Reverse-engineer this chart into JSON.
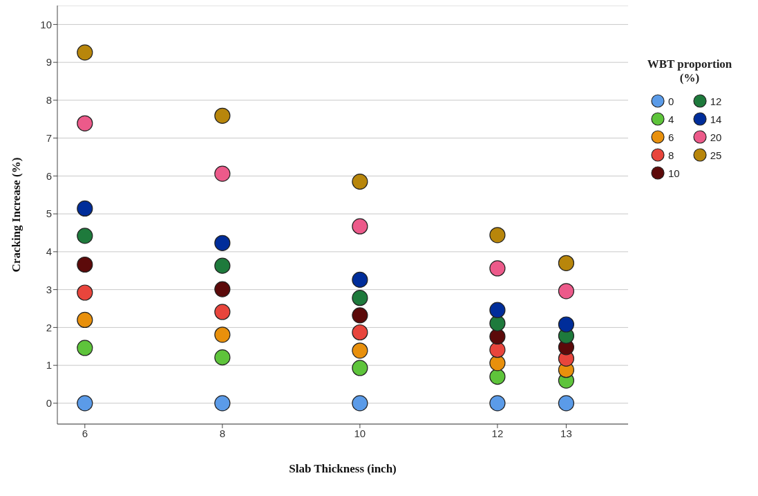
{
  "chart_data": {
    "type": "scatter",
    "xlabel": "Slab Thickness (inch)",
    "ylabel": "Cracking Increase (%)",
    "legend_title": "WBT proportion (%)",
    "x": [
      6,
      8,
      10,
      12,
      13
    ],
    "series": [
      {
        "name": "0",
        "color": "#5b9be8",
        "values": [
          0,
          0,
          0,
          0,
          0
        ]
      },
      {
        "name": "4",
        "color": "#5ec43b",
        "values": [
          1.46,
          1.21,
          0.93,
          0.7,
          0.6
        ]
      },
      {
        "name": "6",
        "color": "#e8900c",
        "values": [
          2.2,
          1.81,
          1.39,
          1.06,
          0.88
        ]
      },
      {
        "name": "8",
        "color": "#e8453c",
        "values": [
          2.92,
          2.41,
          1.87,
          1.41,
          1.18
        ]
      },
      {
        "name": "10",
        "color": "#5c0a0a",
        "values": [
          3.66,
          3.01,
          2.32,
          1.76,
          1.48
        ]
      },
      {
        "name": "12",
        "color": "#1e7a3c",
        "values": [
          4.42,
          3.63,
          2.78,
          2.11,
          1.78
        ]
      },
      {
        "name": "14",
        "color": "#002d9a",
        "values": [
          5.14,
          4.23,
          3.26,
          2.46,
          2.08
        ]
      },
      {
        "name": "20",
        "color": "#ec5a8a",
        "values": [
          7.39,
          6.06,
          4.67,
          3.56,
          2.96
        ]
      },
      {
        "name": "25",
        "color": "#b8860b",
        "values": [
          9.26,
          7.59,
          5.85,
          4.44,
          3.7
        ]
      }
    ],
    "xlim": [
      5.6,
      13.9
    ],
    "xticks": [
      6,
      8,
      10,
      12,
      13
    ],
    "ylim": [
      -0.55,
      10.5
    ],
    "yticks": [
      0,
      1,
      2,
      3,
      4,
      5,
      6,
      7,
      8,
      9,
      10
    ],
    "grid": "y",
    "legend": "top right",
    "marker": "circle"
  }
}
